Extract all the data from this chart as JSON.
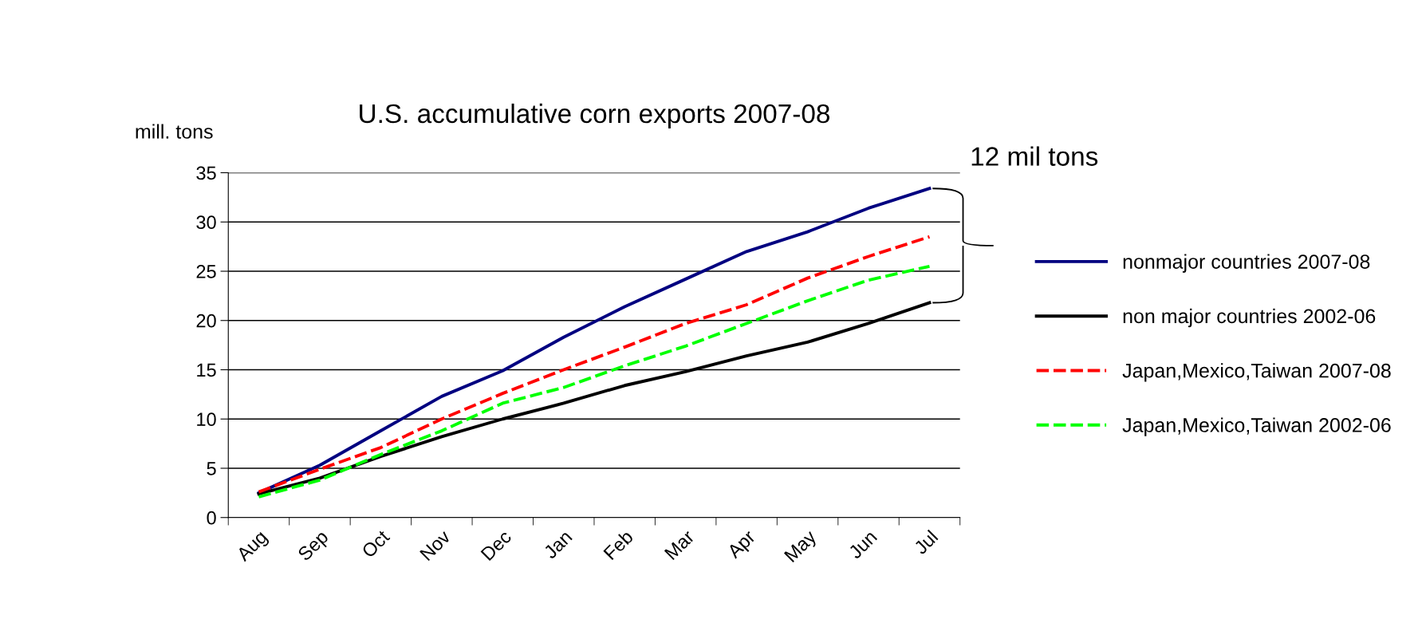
{
  "chart_data": {
    "type": "line",
    "title": "U.S. accumulative corn exports 2007-08",
    "ylabel": "mill. tons",
    "categories": [
      "Aug",
      "Sep",
      "Oct",
      "Nov",
      "Dec",
      "Jan",
      "Feb",
      "Mar",
      "Apr",
      "May",
      "Jun",
      "Jul"
    ],
    "series": [
      {
        "name": "nonmajor countries 2007-08",
        "color": "#000080",
        "line_style": "solid",
        "values": [
          2.5,
          5.3,
          8.8,
          12.3,
          14.9,
          18.3,
          21.4,
          24.2,
          27.0,
          29.0,
          31.4,
          33.4
        ]
      },
      {
        "name": "non major countries 2002-06",
        "color": "#000000",
        "line_style": "solid",
        "values": [
          2.4,
          4.0,
          6.2,
          8.2,
          10.0,
          11.6,
          13.4,
          14.8,
          16.4,
          17.8,
          19.7,
          21.8
        ]
      },
      {
        "name": "Japan,Mexico,Taiwan 2007-08",
        "color": "#ff0000",
        "line_style": "dashed",
        "values": [
          2.6,
          4.9,
          7.1,
          10.0,
          12.6,
          15.0,
          17.3,
          19.7,
          21.6,
          24.3,
          26.5,
          28.5
        ]
      },
      {
        "name": "Japan,Mexico,Taiwan 2002-06",
        "color": "#00ff00",
        "line_style": "dashed",
        "values": [
          2.1,
          3.8,
          6.4,
          8.8,
          11.6,
          13.2,
          15.4,
          17.4,
          19.7,
          22.0,
          24.1,
          25.5
        ]
      }
    ],
    "ylim": [
      0,
      35
    ],
    "yticks": [
      0,
      5,
      10,
      15,
      20,
      25,
      30,
      35
    ],
    "grid": "y",
    "legend": "right",
    "marker": "none",
    "annotations": [
      "12 mil tons"
    ]
  }
}
